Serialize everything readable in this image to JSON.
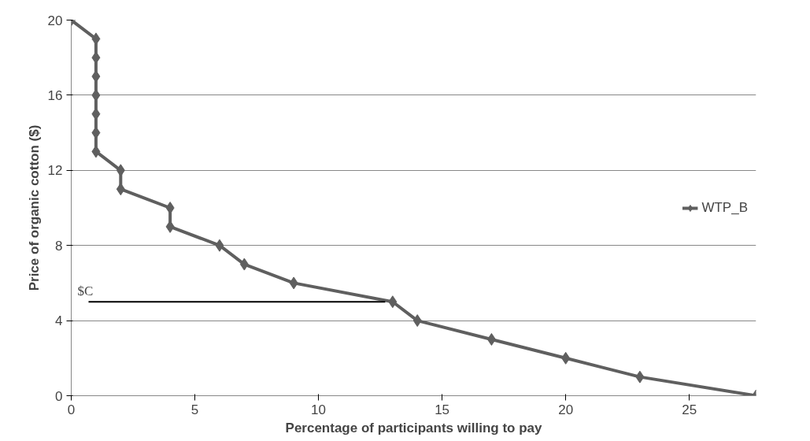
{
  "chart_data": {
    "type": "line",
    "xlabel": "Percentage of participants willing to pay",
    "ylabel": "Price of organic cotton ($)",
    "xlim": [
      0,
      27.7
    ],
    "xticks": [
      0,
      5,
      10,
      15,
      20,
      25
    ],
    "ylim": [
      0,
      20
    ],
    "yticks": [
      0,
      4,
      8,
      12,
      16,
      20
    ],
    "grid": "y",
    "legend": "right",
    "marker": "diamond",
    "line_style": "solid",
    "series": [
      {
        "name": "WTP_B",
        "color": "#5f5f5f",
        "x": [
          0,
          1,
          1,
          1,
          1,
          1,
          1,
          1,
          2,
          2,
          4,
          4,
          6,
          7,
          9,
          13,
          14,
          17,
          20,
          23,
          27.7
        ],
        "values": [
          20,
          19,
          18,
          17,
          16,
          15,
          14,
          13,
          12,
          11,
          10,
          9,
          8,
          7,
          6,
          5,
          4,
          3,
          2,
          1,
          0
        ]
      },
      {
        "type": "line",
        "color": "#000000",
        "marker": "none",
        "x": [
          0.7,
          12.7
        ],
        "values": [
          5,
          5
        ]
      }
    ],
    "annotations": [
      {
        "text": "$C",
        "x": 0.7,
        "y": 5
      }
    ]
  }
}
